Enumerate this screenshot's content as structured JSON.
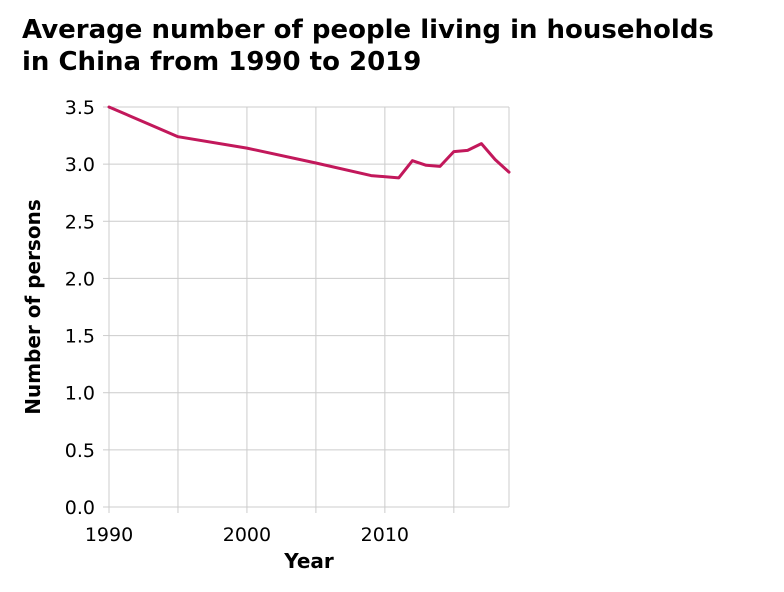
{
  "chart": {
    "title_line1": "Average number of people living in households",
    "title_line2": "in China from 1990 to 2019",
    "xlabel": "Year",
    "ylabel": "Number of persons"
  },
  "colors": {
    "line": "#c2185b",
    "grid": "#cccccc"
  },
  "chart_data": {
    "type": "line",
    "title": "Average number of people living in households in China from 1990 to 2019",
    "xlabel": "Year",
    "ylabel": "Number of persons",
    "xlim": [
      1990,
      2019
    ],
    "ylim": [
      0,
      3.5
    ],
    "x_ticks": [
      1990,
      1995,
      2000,
      2005,
      2010,
      2015
    ],
    "x_tick_labels": [
      "1990",
      "",
      "2000",
      "",
      "2010",
      ""
    ],
    "y_ticks": [
      0,
      0.5,
      1.0,
      1.5,
      2.0,
      2.5,
      3.0,
      3.5
    ],
    "y_tick_labels": [
      "0.0",
      "0.5",
      "1.0",
      "1.5",
      "2.0",
      "2.5",
      "3.0",
      "3.5"
    ],
    "grid": true,
    "series": [
      {
        "x": [
          1990,
          1995,
          2000,
          2005,
          2009,
          2011,
          2012,
          2013,
          2014,
          2015,
          2016,
          2017,
          2018,
          2019
        ],
        "y": [
          3.5,
          3.24,
          3.14,
          3.01,
          2.9,
          2.88,
          3.03,
          2.99,
          2.98,
          3.11,
          3.12,
          3.18,
          3.04,
          2.93
        ]
      }
    ]
  }
}
